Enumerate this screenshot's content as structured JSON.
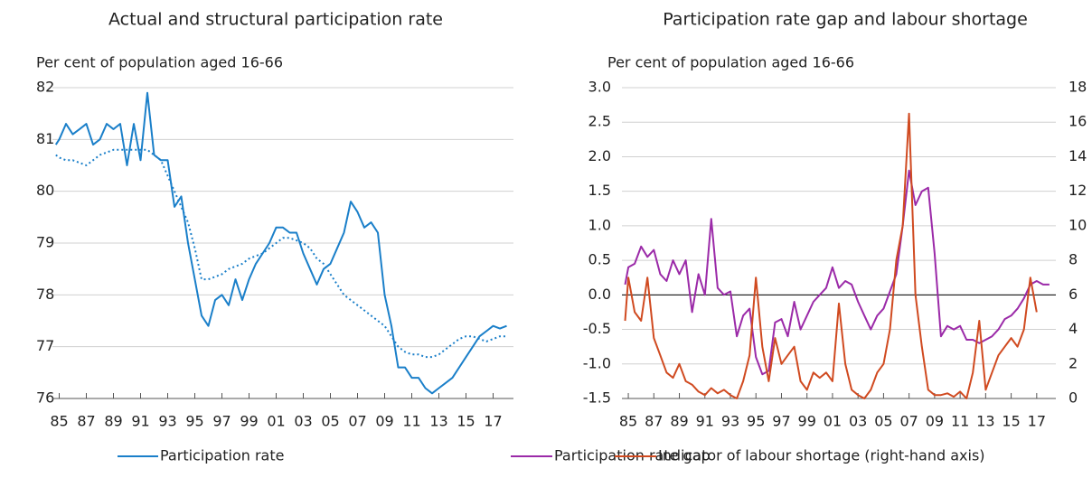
{
  "chart_data": [
    {
      "type": "line",
      "title": "Actual and structural participation rate",
      "subtitle": "Per cent of population aged 16-66",
      "x": [
        1984.75,
        1985,
        1985.5,
        1986,
        1986.5,
        1987,
        1987.5,
        1988,
        1988.5,
        1989,
        1989.5,
        1990,
        1990.5,
        1991,
        1991.5,
        1992,
        1992.5,
        1993,
        1993.5,
        1994,
        1994.5,
        1995,
        1995.5,
        1996,
        1996.5,
        1997,
        1997.5,
        1998,
        1998.5,
        1999,
        1999.5,
        2000,
        2000.5,
        2001,
        2001.5,
        2002,
        2002.5,
        2003,
        2003.5,
        2004,
        2004.5,
        2005,
        2005.5,
        2006,
        2006.5,
        2007,
        2007.5,
        2008,
        2008.5,
        2009,
        2009.5,
        2010,
        2010.5,
        2011,
        2011.5,
        2012,
        2012.5,
        2013,
        2013.5,
        2014,
        2014.5,
        2015,
        2015.5,
        2016,
        2016.5,
        2017,
        2017.5,
        2018
      ],
      "series": [
        {
          "name": "Participation rate",
          "color": "#1a7fc9",
          "dash": "solid",
          "values": [
            80.9,
            81.0,
            81.3,
            81.1,
            81.2,
            81.3,
            80.9,
            81.0,
            81.3,
            81.2,
            81.3,
            80.5,
            81.3,
            80.6,
            81.9,
            80.7,
            80.6,
            80.6,
            79.7,
            79.9,
            79.0,
            78.3,
            77.6,
            77.4,
            77.9,
            78.0,
            77.8,
            78.3,
            77.9,
            78.3,
            78.6,
            78.8,
            79.0,
            79.3,
            79.3,
            79.2,
            79.2,
            78.8,
            78.5,
            78.2,
            78.5,
            78.6,
            78.9,
            79.2,
            79.8,
            79.6,
            79.3,
            79.4,
            79.2,
            78.0,
            77.4,
            76.6,
            76.6,
            76.4,
            76.4,
            76.2,
            76.1,
            76.2,
            76.3,
            76.4,
            76.6,
            76.8,
            77.0,
            77.2,
            77.3,
            77.4,
            77.35,
            77.4
          ]
        },
        {
          "color": "#1a7fc9",
          "dash": "dotted",
          "values": [
            80.7,
            80.65,
            80.6,
            80.6,
            80.55,
            80.5,
            80.6,
            80.7,
            80.75,
            80.8,
            80.8,
            80.8,
            80.8,
            80.8,
            80.8,
            80.7,
            80.6,
            80.3,
            80.0,
            79.7,
            79.4,
            78.9,
            78.3,
            78.3,
            78.35,
            78.4,
            78.5,
            78.55,
            78.6,
            78.7,
            78.75,
            78.8,
            78.9,
            79.0,
            79.1,
            79.1,
            79.05,
            79.0,
            78.9,
            78.7,
            78.6,
            78.4,
            78.2,
            78.0,
            77.9,
            77.8,
            77.7,
            77.6,
            77.5,
            77.4,
            77.2,
            77.0,
            76.9,
            76.85,
            76.85,
            76.8,
            76.8,
            76.85,
            76.95,
            77.05,
            77.15,
            77.2,
            77.2,
            77.15,
            77.1,
            77.15,
            77.2,
            77.2
          ]
        }
      ],
      "xlim": [
        1984.5,
        2018.5
      ],
      "xticks": [
        {
          "value": 1985,
          "label": "85"
        },
        {
          "value": 1987,
          "label": "87"
        },
        {
          "value": 1989,
          "label": "89"
        },
        {
          "value": 1991,
          "label": "91"
        },
        {
          "value": 1993,
          "label": "93"
        },
        {
          "value": 1995,
          "label": "95"
        },
        {
          "value": 1997,
          "label": "97"
        },
        {
          "value": 1999,
          "label": "99"
        },
        {
          "value": 2001,
          "label": "01"
        },
        {
          "value": 2003,
          "label": "03"
        },
        {
          "value": 2005,
          "label": "05"
        },
        {
          "value": 2007,
          "label": "07"
        },
        {
          "value": 2009,
          "label": "09"
        },
        {
          "value": 2011,
          "label": "11"
        },
        {
          "value": 2013,
          "label": "13"
        },
        {
          "value": 2015,
          "label": "15"
        },
        {
          "value": 2017,
          "label": "17"
        }
      ],
      "ylim": [
        76,
        82
      ],
      "yticks": [
        76,
        77,
        78,
        79,
        80,
        81,
        82
      ],
      "grid": true
    },
    {
      "type": "line",
      "title": "Participation rate gap and labour shortage",
      "subtitle": "Per cent of population aged 16-66",
      "x": [
        1984.75,
        1985,
        1985.5,
        1986,
        1986.5,
        1987,
        1987.5,
        1988,
        1988.5,
        1989,
        1989.5,
        1990,
        1990.5,
        1991,
        1991.5,
        1992,
        1992.5,
        1993,
        1993.5,
        1994,
        1994.5,
        1995,
        1995.5,
        1996,
        1996.5,
        1997,
        1997.5,
        1998,
        1998.5,
        1999,
        1999.5,
        2000,
        2000.5,
        2001,
        2001.5,
        2002,
        2002.5,
        2003,
        2003.5,
        2004,
        2004.5,
        2005,
        2005.5,
        2006,
        2006.5,
        2007,
        2007.5,
        2008,
        2008.5,
        2009,
        2009.5,
        2010,
        2010.5,
        2011,
        2011.5,
        2012,
        2012.5,
        2013,
        2013.5,
        2014,
        2014.5,
        2015,
        2015.5,
        2016,
        2016.5,
        2017,
        2017.5,
        2018
      ],
      "series": [
        {
          "name": "Participation rate gap",
          "color": "#9b2aa8",
          "dash": "solid",
          "values": [
            0.15,
            0.4,
            0.45,
            0.7,
            0.55,
            0.65,
            0.3,
            0.2,
            0.5,
            0.3,
            0.5,
            -0.25,
            0.3,
            0.0,
            1.1,
            0.1,
            0.0,
            0.05,
            -0.6,
            -0.3,
            -0.2,
            -0.9,
            -1.15,
            -1.1,
            -0.4,
            -0.35,
            -0.6,
            -0.1,
            -0.5,
            -0.3,
            -0.1,
            0.0,
            0.1,
            0.4,
            0.1,
            0.2,
            0.15,
            -0.1,
            -0.3,
            -0.5,
            -0.3,
            -0.2,
            0.05,
            0.3,
            1.0,
            1.8,
            1.3,
            1.5,
            1.55,
            0.6,
            -0.6,
            -0.45,
            -0.5,
            -0.45,
            -0.65,
            -0.65,
            -0.7,
            -0.65,
            -0.6,
            -0.5,
            -0.35,
            -0.3,
            -0.2,
            -0.05,
            0.15,
            0.2,
            0.15,
            0.15
          ]
        },
        {
          "name": "Indicator of labour shortage (right-hand axis)",
          "color": "#d04a20",
          "dash": "solid",
          "axis": "y2",
          "values": [
            4.5,
            7.0,
            5.0,
            4.5,
            7.0,
            3.5,
            2.5,
            1.5,
            1.2,
            2.0,
            1.0,
            0.8,
            0.4,
            0.2,
            0.6,
            0.3,
            0.5,
            0.2,
            0.0,
            1.0,
            2.5,
            7.0,
            3.0,
            1.0,
            3.5,
            2.0,
            2.5,
            3.0,
            1.0,
            0.5,
            1.5,
            1.2,
            1.5,
            1.0,
            5.5,
            2.0,
            0.5,
            0.2,
            0.0,
            0.5,
            1.5,
            2.0,
            4.0,
            8.0,
            10.0,
            16.5,
            6.0,
            3.0,
            0.5,
            0.2,
            0.2,
            0.3,
            0.1,
            0.4,
            0.0,
            1.5,
            4.5,
            0.5,
            1.5,
            2.5,
            3.0,
            3.5,
            3.0,
            4.0,
            7.0,
            5.0,
            null,
            null
          ]
        }
      ],
      "xlim": [
        1984.5,
        2018.5
      ],
      "xticks": [
        {
          "value": 1985,
          "label": "85"
        },
        {
          "value": 1987,
          "label": "87"
        },
        {
          "value": 1989,
          "label": "89"
        },
        {
          "value": 1991,
          "label": "91"
        },
        {
          "value": 1993,
          "label": "93"
        },
        {
          "value": 1995,
          "label": "95"
        },
        {
          "value": 1997,
          "label": "97"
        },
        {
          "value": 1999,
          "label": "99"
        },
        {
          "value": 2001,
          "label": "01"
        },
        {
          "value": 2003,
          "label": "03"
        },
        {
          "value": 2005,
          "label": "05"
        },
        {
          "value": 2007,
          "label": "07"
        },
        {
          "value": 2009,
          "label": "09"
        },
        {
          "value": 2011,
          "label": "11"
        },
        {
          "value": 2013,
          "label": "13"
        },
        {
          "value": 2015,
          "label": "15"
        },
        {
          "value": 2017,
          "label": "17"
        }
      ],
      "ylim": [
        -1.5,
        3.0
      ],
      "yticks": [
        -1.5,
        {
          "value": -1,
          "label": "-1.0"
        },
        -0.5,
        {
          "value": 0,
          "label": "0.0"
        },
        0.5,
        {
          "value": 1,
          "label": "1.0"
        },
        1.5,
        {
          "value": 2,
          "label": "2.0"
        },
        2.5,
        {
          "value": 3,
          "label": "3.0"
        }
      ],
      "y2lim": [
        0,
        18
      ],
      "y2ticks": [
        0,
        2,
        4,
        6,
        8,
        10,
        12,
        14,
        16,
        18
      ],
      "grid": true,
      "zero_line": true
    }
  ]
}
